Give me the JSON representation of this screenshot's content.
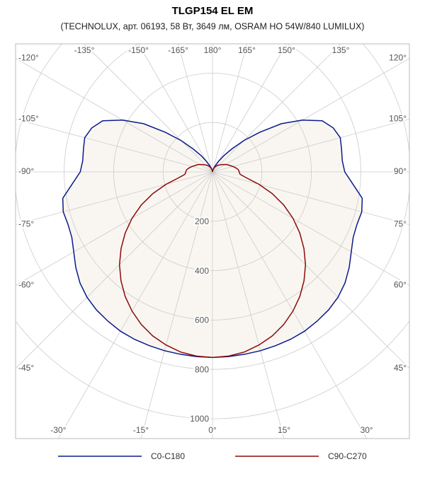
{
  "chart_data": {
    "type": "polar",
    "title": "TLGP154 EL EM",
    "subtitle": "(TECHNOLUX, арт. 06193, 58 Вт, 3649 лм, OSRAM HO 54W/840 LUMILUX)",
    "x": [
      -180,
      -175,
      -170,
      -165,
      -160,
      -155,
      -150,
      -145,
      -140,
      -135,
      -130,
      -125,
      -120,
      -115,
      -110,
      -105,
      -100,
      -95,
      -90,
      -85,
      -80,
      -75,
      -70,
      -65,
      -60,
      -55,
      -50,
      -45,
      -40,
      -35,
      -30,
      -25,
      -20,
      -15,
      -10,
      -5,
      0,
      5,
      10,
      15,
      20,
      25,
      30,
      35,
      40,
      45,
      50,
      55,
      60,
      65,
      70,
      75,
      80,
      85,
      90,
      95,
      100,
      105,
      110,
      115,
      120,
      125,
      130,
      135,
      140,
      145,
      150,
      155,
      160,
      165,
      170,
      175,
      180
    ],
    "series": [
      {
        "name": "C0-C180",
        "color": "#0a1a8c",
        "values": [
          0,
          2,
          5,
          10,
          18,
          30,
          50,
          80,
          120,
          180,
          250,
          340,
          420,
          490,
          520,
          535,
          530,
          527,
          535,
          570,
          615,
          625,
          622,
          628,
          648,
          675,
          700,
          718,
          730,
          738,
          745,
          748,
          749,
          750,
          750,
          751,
          752,
          751,
          750,
          750,
          749,
          748,
          745,
          738,
          730,
          718,
          700,
          675,
          648,
          628,
          622,
          625,
          615,
          570,
          535,
          527,
          530,
          535,
          520,
          490,
          420,
          340,
          250,
          180,
          120,
          80,
          50,
          30,
          18,
          10,
          5,
          2,
          0
        ]
      },
      {
        "name": "C90-C270",
        "color": "#8c0a0a",
        "values": [
          0,
          3,
          6,
          10,
          15,
          20,
          25,
          30,
          35,
          40,
          45,
          52,
          60,
          68,
          75,
          85,
          95,
          105,
          108,
          112,
          140,
          195,
          257,
          318,
          376,
          431,
          483,
          532,
          576,
          616,
          651,
          682,
          707,
          726,
          741,
          749,
          752,
          749,
          741,
          726,
          707,
          682,
          651,
          616,
          576,
          532,
          483,
          431,
          376,
          318,
          257,
          195,
          140,
          112,
          108,
          105,
          95,
          85,
          75,
          68,
          60,
          52,
          45,
          40,
          35,
          30,
          25,
          20,
          15,
          10,
          6,
          3,
          0
        ]
      }
    ],
    "rlim": [
      0,
      1000
    ],
    "rticks": [
      200,
      400,
      600,
      800,
      1000
    ],
    "angle_ticks": [
      {
        "value": -120,
        "label": "-120°"
      },
      {
        "value": -135,
        "label": "-135°"
      },
      {
        "value": -150,
        "label": "-150°"
      },
      {
        "value": -165,
        "label": "-165°"
      },
      {
        "value": 180,
        "label": "180°"
      },
      {
        "value": 165,
        "label": "165°"
      },
      {
        "value": 150,
        "label": "150°"
      },
      {
        "value": 135,
        "label": "135°"
      },
      {
        "value": 120,
        "label": "120°"
      },
      {
        "value": 105,
        "label": "105°"
      },
      {
        "value": 90,
        "label": "90°"
      },
      {
        "value": 75,
        "label": "75°"
      },
      {
        "value": 60,
        "label": "60°"
      },
      {
        "value": 45,
        "label": "45°"
      },
      {
        "value": 30,
        "label": "30°"
      },
      {
        "value": 15,
        "label": "15°"
      },
      {
        "value": 0,
        "label": "0°"
      },
      {
        "value": -15,
        "label": "-15°"
      },
      {
        "value": -30,
        "label": "-30°"
      },
      {
        "value": -45,
        "label": "-45°"
      },
      {
        "value": -60,
        "label": "-60°"
      },
      {
        "value": -75,
        "label": "-75°"
      },
      {
        "value": -90,
        "label": "-90°"
      },
      {
        "value": -105,
        "label": "-105°"
      }
    ],
    "fill_color": "#f9f6f1"
  }
}
